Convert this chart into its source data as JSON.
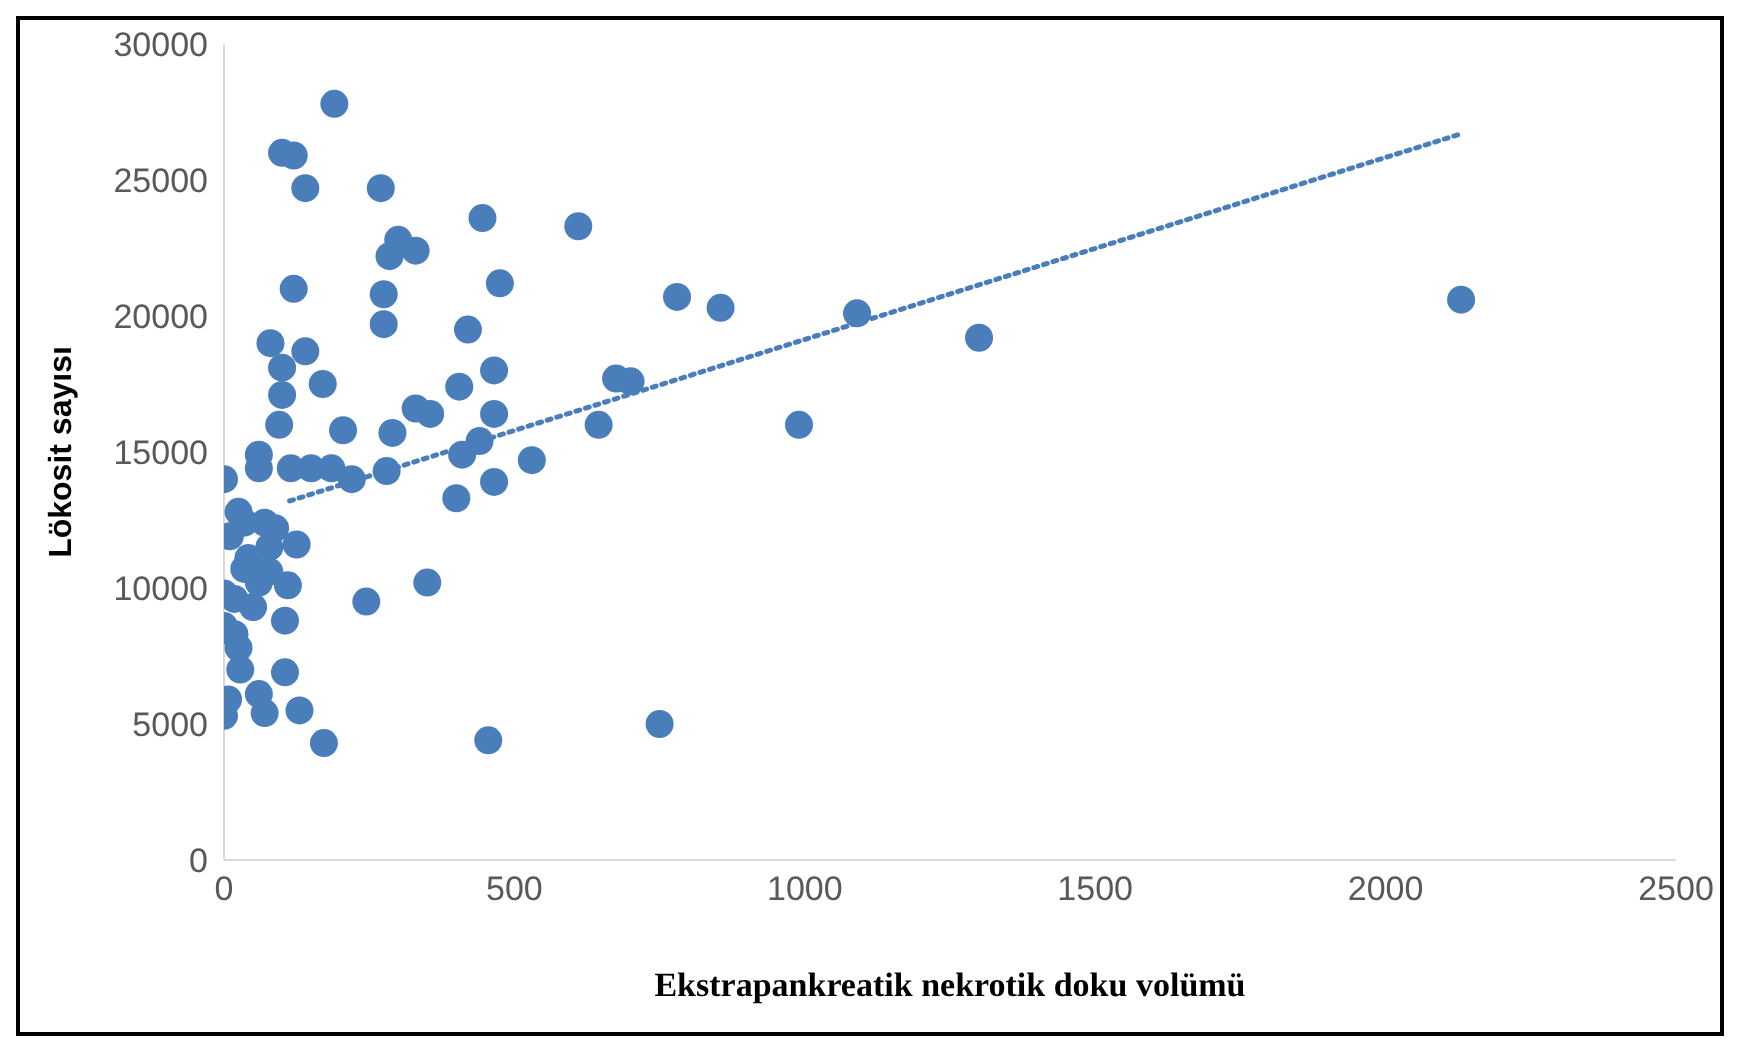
{
  "chart_data": {
    "type": "scatter",
    "xlabel": "Ekstrapankreatik nekrotik doku volümü",
    "ylabel": "Lökosit sayısı",
    "xlim": [
      0,
      2500
    ],
    "xticks": [
      0,
      500,
      1000,
      1500,
      2000,
      2500
    ],
    "ylim": [
      0,
      30000
    ],
    "yticks": [
      0,
      5000,
      10000,
      15000,
      20000,
      25000,
      30000
    ],
    "marker": "circle",
    "series": [
      {
        "color": "#4a7ebb",
        "x": [
          190,
          100,
          120,
          140,
          270,
          445,
          610,
          300,
          330,
          285,
          120,
          275,
          475,
          780,
          855,
          1090,
          2130,
          1300,
          80,
          275,
          420,
          140,
          100,
          465,
          170,
          405,
          675,
          700,
          100,
          330,
          355,
          465,
          205,
          290,
          95,
          645,
          990,
          440,
          410,
          530,
          60,
          60,
          0,
          115,
          150,
          185,
          220,
          280,
          465,
          400,
          25,
          35,
          70,
          88,
          125,
          78,
          42,
          78,
          60,
          110,
          350,
          245,
          0,
          18,
          50,
          105,
          0,
          18,
          25,
          28,
          105,
          60,
          7,
          130,
          70,
          0,
          172,
          455,
          750,
          35,
          10
        ],
        "values": [
          27800,
          26000,
          25900,
          24700,
          24700,
          23600,
          23300,
          22800,
          22400,
          22200,
          21000,
          20800,
          21200,
          20700,
          20300,
          20100,
          20600,
          19200,
          19000,
          19700,
          19500,
          18700,
          18100,
          18000,
          17500,
          17400,
          17700,
          17600,
          17100,
          16600,
          16400,
          16400,
          15800,
          15700,
          16000,
          16000,
          16000,
          15400,
          14900,
          14700,
          14900,
          14400,
          14000,
          14400,
          14400,
          14400,
          14000,
          14300,
          13900,
          13300,
          12800,
          12400,
          12400,
          12200,
          11600,
          11500,
          11100,
          10600,
          10200,
          10100,
          10200,
          9500,
          9800,
          9600,
          9300,
          8800,
          8600,
          8300,
          7800,
          7000,
          6900,
          6100,
          5900,
          5500,
          5400,
          5300,
          4300,
          4400,
          5000,
          10700,
          11900
        ]
      },
      {
        "type": "line",
        "color": "#4a7ebb",
        "line_style": "dotted",
        "marker": "none",
        "x": [
          113,
          2130
        ],
        "values": [
          13200,
          26700
        ]
      }
    ]
  }
}
